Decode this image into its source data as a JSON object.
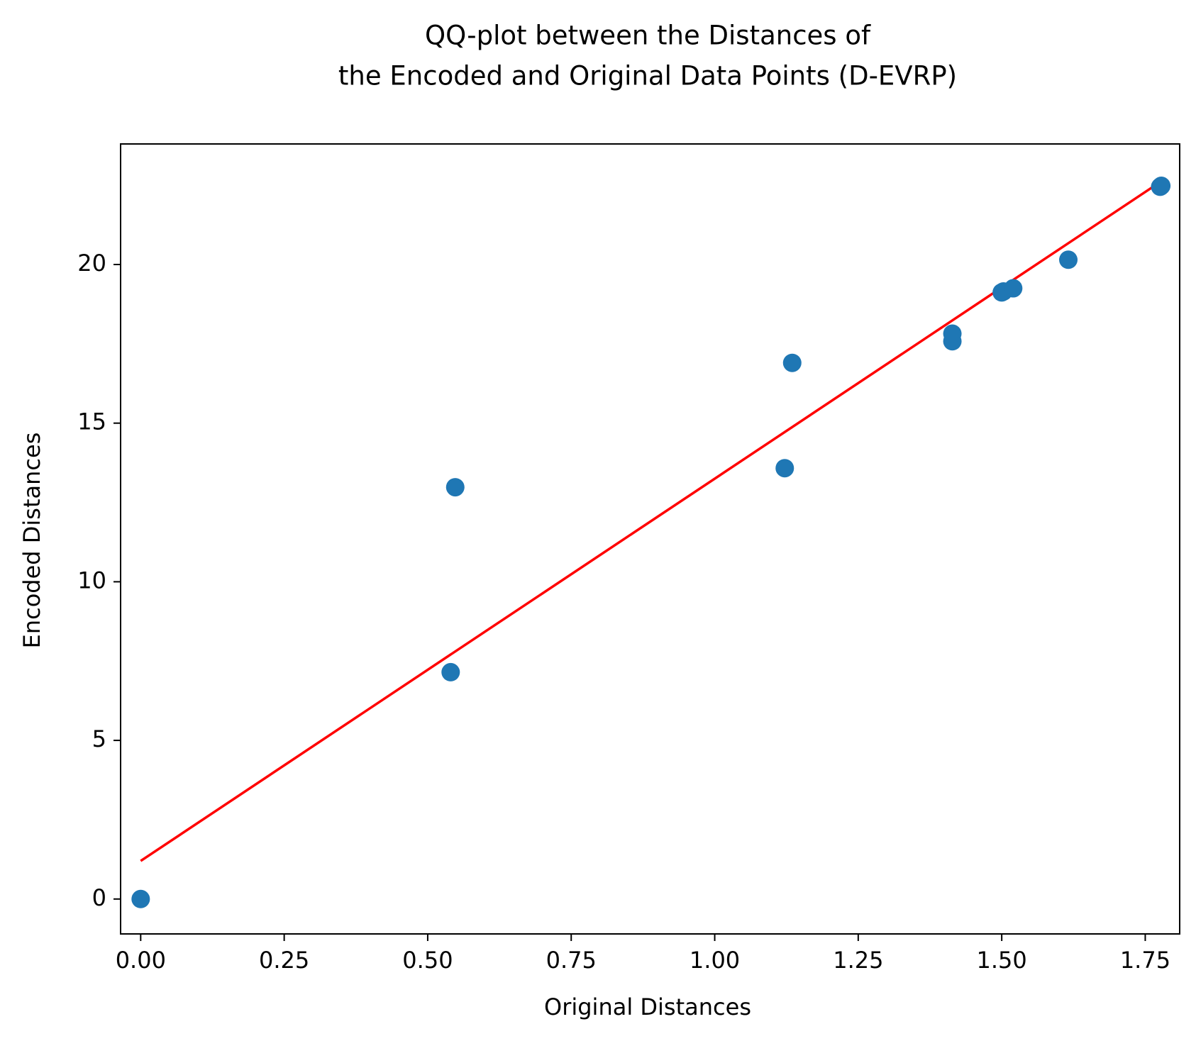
{
  "chart_data": {
    "type": "scatter",
    "title_lines": [
      "QQ-plot between the Distances of",
      "the Encoded and Original Data Points (D-EVRP)"
    ],
    "xlabel": "Original Distances",
    "ylabel": "Encoded Distances",
    "xlim": [
      -0.035,
      1.81
    ],
    "ylim": [
      -1.1,
      23.8
    ],
    "x_ticks": [
      0.0,
      0.25,
      0.5,
      0.75,
      1.0,
      1.25,
      1.5,
      1.75
    ],
    "x_tick_labels": [
      "0.00",
      "0.25",
      "0.50",
      "0.75",
      "1.00",
      "1.25",
      "1.50",
      "1.75"
    ],
    "y_ticks": [
      0,
      5,
      10,
      15,
      20
    ],
    "y_tick_labels": [
      "0",
      "5",
      "10",
      "15",
      "20"
    ],
    "grid": false,
    "colors": {
      "points": "#1f77b4",
      "fit_line": "#ff0000"
    },
    "points": [
      {
        "x": 0.0,
        "y": 0.0
      },
      {
        "x": 0.54,
        "y": 7.15
      },
      {
        "x": 0.548,
        "y": 12.98
      },
      {
        "x": 1.122,
        "y": 13.58
      },
      {
        "x": 1.135,
        "y": 16.9
      },
      {
        "x": 1.414,
        "y": 17.58
      },
      {
        "x": 1.414,
        "y": 17.82
      },
      {
        "x": 1.5,
        "y": 19.12
      },
      {
        "x": 1.503,
        "y": 19.15
      },
      {
        "x": 1.52,
        "y": 19.25
      },
      {
        "x": 1.616,
        "y": 20.15
      },
      {
        "x": 1.776,
        "y": 22.45
      },
      {
        "x": 1.778,
        "y": 22.48
      }
    ],
    "fit_line": {
      "x": [
        0.0,
        1.776
      ],
      "y": [
        1.2,
        22.6
      ]
    }
  }
}
